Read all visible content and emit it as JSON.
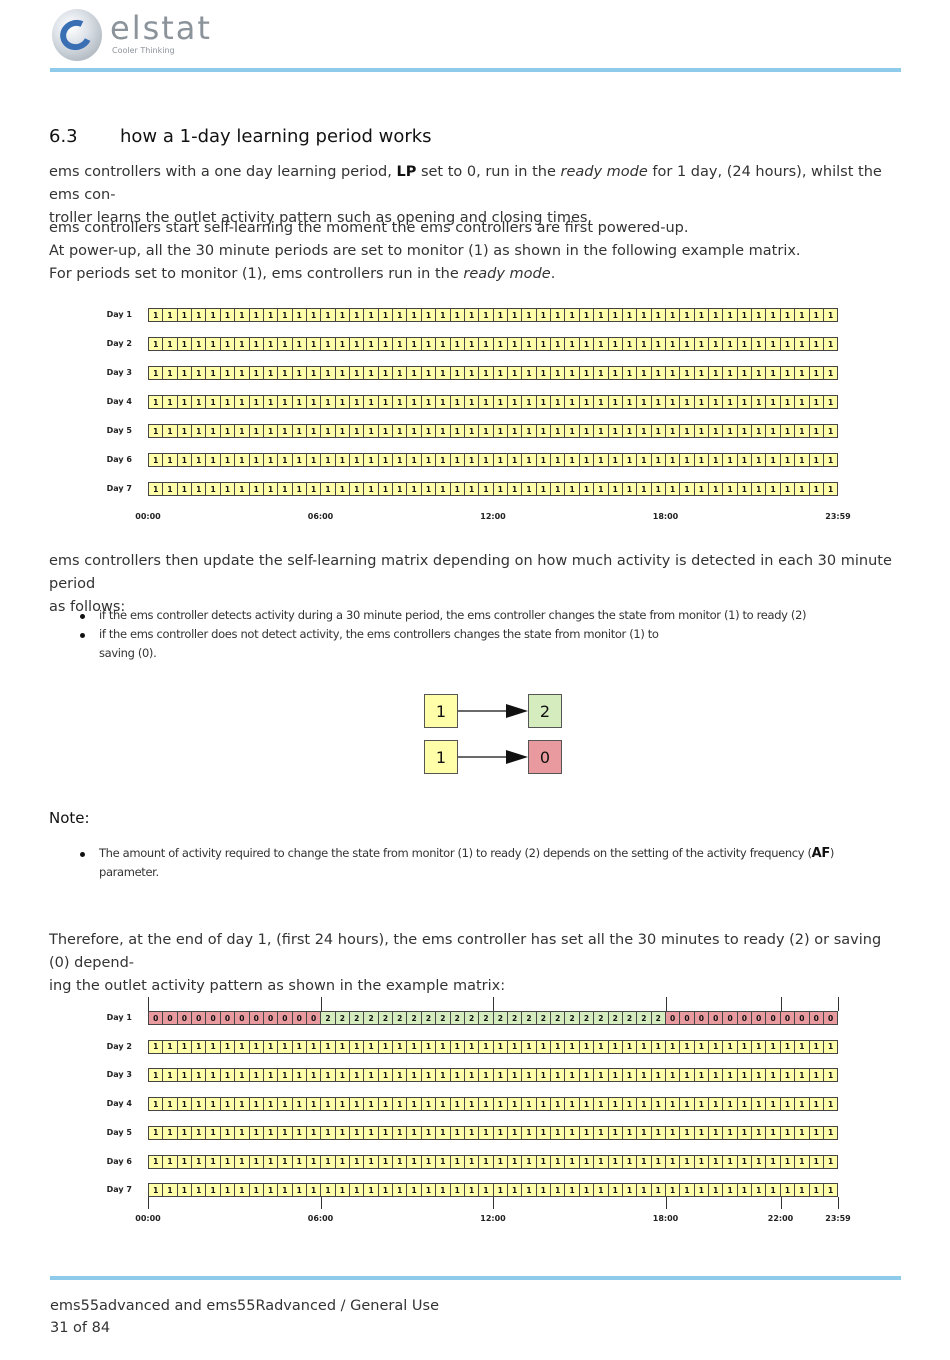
{
  "logo": {
    "name": "elstat",
    "tagline": "Cooler Thinking"
  },
  "section": {
    "number": "6.3",
    "title": "how a 1-day learning period works"
  },
  "para1": {
    "a": "ems controllers with a one day learning period, ",
    "param": "LP",
    "b": " set to 0, run in the ",
    "italic": "ready mode",
    "c": " for 1 day, (24 hours), whilst the ems con-",
    "line2": "troller learns the outlet activity pattern such as opening and closing times."
  },
  "para2": {
    "line1": "ems controllers start self-learning the moment the ems controllers are first powered-up.",
    "line2": "At power-up, all the 30 minute periods are set to monitor (1) as shown in the following example matrix.",
    "line3a": "For periods set to monitor (1), ems controllers run in the ",
    "line3italic": "ready mode",
    "line3b": "."
  },
  "matrix1": {
    "days": [
      "Day 1",
      "Day 2",
      "Day 3",
      "Day 4",
      "Day 5",
      "Day 6",
      "Day 7"
    ],
    "rows": [
      "111111111111111111111111111111111111111111111111",
      "111111111111111111111111111111111111111111111111",
      "111111111111111111111111111111111111111111111111",
      "111111111111111111111111111111111111111111111111",
      "111111111111111111111111111111111111111111111111",
      "111111111111111111111111111111111111111111111111",
      "111111111111111111111111111111111111111111111111"
    ],
    "times": [
      "00:00",
      "06:00",
      "12:00",
      "18:00",
      "23:59"
    ]
  },
  "para3": {
    "line1": "ems controllers then update the self-learning matrix depending on how much activity is detected in each 30 minute period",
    "line2": "as follows:"
  },
  "bullets": [
    {
      "text": "if the ems controller detects activity during a 30 minute period, the ems controller changes the state from monitor (1) to ready (2)"
    },
    {
      "text": "if the ems controller does not detect activity, the ems controllers changes the state from monitor (1) to",
      "line2": "saving (0)."
    }
  ],
  "diagram": {
    "row1": {
      "from": "1",
      "to": "2"
    },
    "row2": {
      "from": "1",
      "to": "0"
    }
  },
  "note": {
    "label": "Note",
    "colon": ":",
    "text": "The amount of activity required to change the state from monitor (1) to ready (2) depends on the setting of the activity frequency (",
    "param": "AF",
    "close": ")",
    "line2": "parameter."
  },
  "para4": {
    "line1": "Therefore, at the end of day 1, (first 24 hours), the ems controller has set all the 30 minutes to ready (2) or saving (0) depend-",
    "line2": "ing the outlet activity pattern as shown in the example matrix:"
  },
  "matrix2": {
    "days": [
      "Day 1",
      "Day 2",
      "Day 3",
      "Day 4",
      "Day 5",
      "Day 6",
      "Day 7"
    ],
    "rows": [
      "000000000000222222222222222222222222000000000000",
      "111111111111111111111111111111111111111111111111",
      "111111111111111111111111111111111111111111111111",
      "111111111111111111111111111111111111111111111111",
      "111111111111111111111111111111111111111111111111",
      "111111111111111111111111111111111111111111111111",
      "111111111111111111111111111111111111111111111111"
    ],
    "times": [
      "00:00",
      "06:00",
      "12:00",
      "18:00",
      "22:00",
      "23:59"
    ],
    "time_slots": [
      0,
      12,
      24,
      36,
      44,
      48
    ]
  },
  "footer": {
    "line1": "ems55advanced and ems55Radvanced / General Use",
    "line2": "31 of 84"
  },
  "colors": {
    "rule": "#8ecbea",
    "monitor": "#ffffaa",
    "ready": "#d5ecbf",
    "saving": "#e89a9e"
  }
}
